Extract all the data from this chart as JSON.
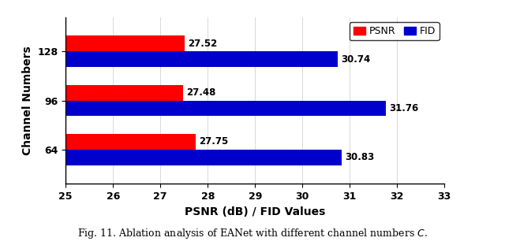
{
  "categories": [
    "64",
    "96",
    "128"
  ],
  "psnr_values": [
    27.75,
    27.48,
    27.52
  ],
  "fid_values": [
    30.83,
    31.76,
    30.74
  ],
  "psnr_color": "#FF0000",
  "fid_color": "#0000CC",
  "xlabel": "PSNR (dB) / FID Values",
  "ylabel": "Channel Numbers",
  "xlim": [
    25,
    33
  ],
  "xticks": [
    25,
    26,
    27,
    28,
    29,
    30,
    31,
    32,
    33
  ],
  "bar_height": 0.32,
  "caption": "Fig. 11. Ablation analysis of EANet with different channel numbers $C$.",
  "legend_labels": [
    "PSNR",
    "FID"
  ],
  "background_color": "#ffffff",
  "label_fontsize": 8.5,
  "axis_fontsize": 9,
  "xlabel_fontsize": 10
}
